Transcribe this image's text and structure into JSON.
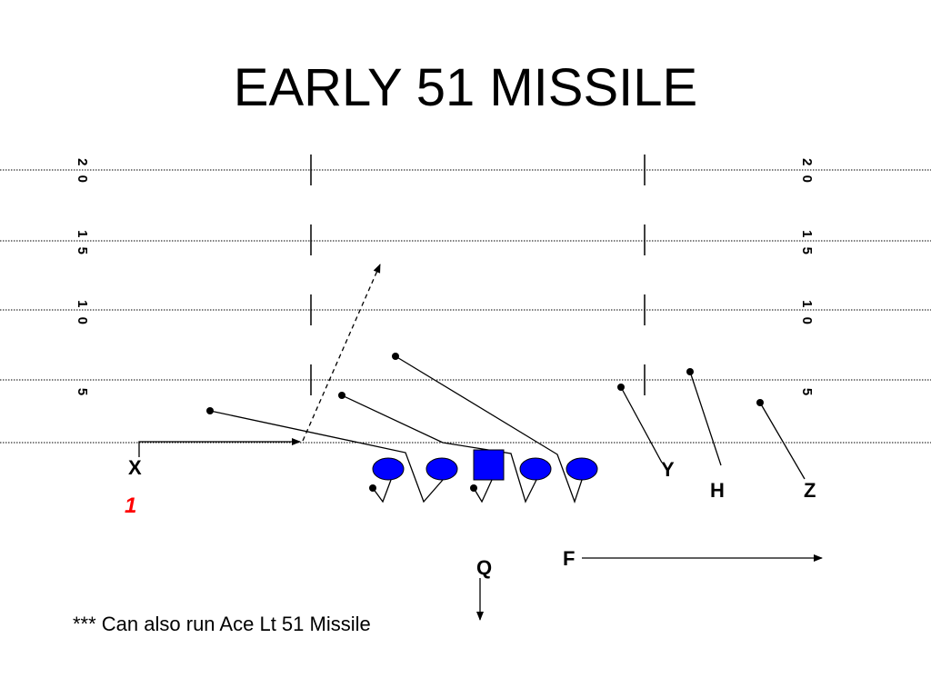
{
  "slide": {
    "title": "EARLY 51 MISSILE",
    "note": "*** Can also run Ace Lt 51 Missile"
  },
  "field": {
    "yard_lines": [
      "2 0",
      "1 5",
      "1 0",
      "5"
    ]
  },
  "players": {
    "x": "X",
    "y": "Y",
    "h": "H",
    "z": "Z",
    "q": "Q",
    "f": "F",
    "play_number": "1"
  },
  "colors": {
    "lineman_fill": "#0000ff",
    "play_number": "#ff0000",
    "lines": "#000000"
  }
}
